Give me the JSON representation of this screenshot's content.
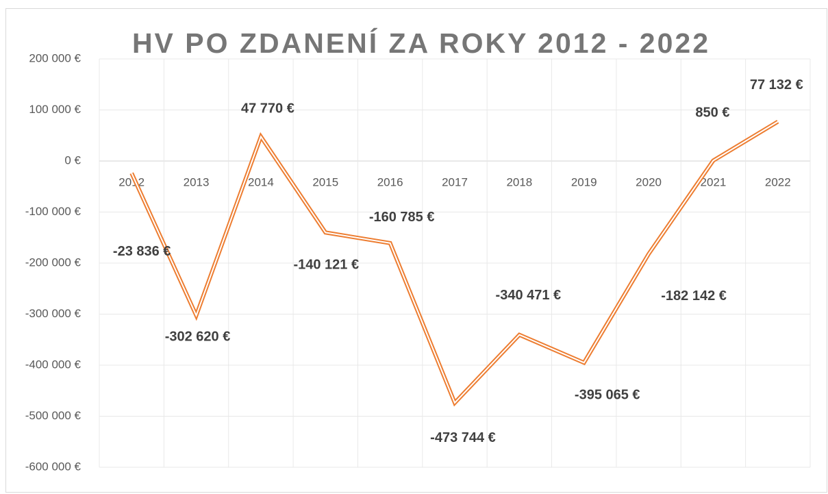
{
  "chart_data": {
    "type": "line",
    "title": "HV PO ZDANENÍ ZA ROKY 2012 - 2022",
    "categories": [
      "2012",
      "2013",
      "2014",
      "2015",
      "2016",
      "2017",
      "2018",
      "2019",
      "2020",
      "2021",
      "2022"
    ],
    "series": [
      {
        "color": "#ed7d31",
        "values": [
          -23836,
          -302620,
          47770,
          -140121,
          -160785,
          -473744,
          -340471,
          -395065,
          -182142,
          850,
          77132
        ],
        "value_labels": [
          "-23 836 €",
          "-302 620 €",
          "47 770 €",
          "-140 121 €",
          "-160 785 €",
          "-473 744 €",
          "-340 471 €",
          "-395 065 €",
          "-182 142 €",
          "850 €",
          "77 132 €"
        ]
      }
    ],
    "ylim": [
      -600000,
      200000
    ],
    "yticks": [
      {
        "value": -600000,
        "label": "-600 000 €"
      },
      {
        "value": -500000,
        "label": "-500 000 €"
      },
      {
        "value": -400000,
        "label": "-400 000 €"
      },
      {
        "value": -300000,
        "label": "-300 000 €"
      },
      {
        "value": -200000,
        "label": "-200 000 €"
      },
      {
        "value": -100000,
        "label": "-100 000 €"
      },
      {
        "value": 0,
        "label": "0 €"
      },
      {
        "value": 100000,
        "label": "100 000 €"
      },
      {
        "value": 200000,
        "label": "200 000 €"
      }
    ],
    "grid": true
  }
}
